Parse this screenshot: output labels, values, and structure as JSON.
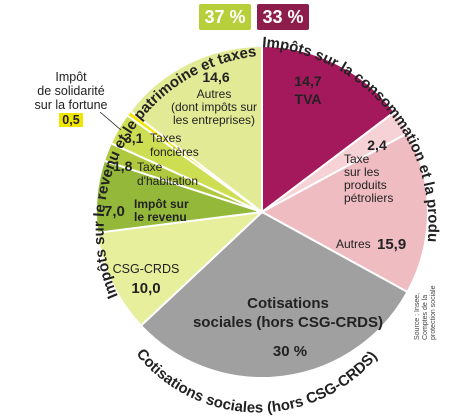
{
  "chart_data": {
    "type": "pie",
    "groups": [
      {
        "name": "Impôts sur la consommation et la production",
        "percent": "33 %",
        "color": "#8d1d4a"
      },
      {
        "name": "Cotisations sociales (hors CSG-CRDS)",
        "percent": "30 %",
        "color": "#9a9a9a"
      },
      {
        "name": "Impôts sur le revenu et le patrimoine et taxes affectées",
        "percent": "37 %",
        "color": "#8fb03b"
      }
    ],
    "slices": [
      {
        "label": "TVA",
        "value": 14.7,
        "value_text": "14,7",
        "color": "#a3195b"
      },
      {
        "label": "Taxe sur les produits pétroliers",
        "value": 2.4,
        "value_text": "2,4",
        "color": "#f6d2d6"
      },
      {
        "label": "Autres",
        "value": 15.9,
        "value_text": "15,9",
        "color": "#efbcc2"
      },
      {
        "label": "Cotisations sociales (hors CSG-CRDS)",
        "value": 30,
        "value_text": "30 %",
        "color": "#a0a0a0"
      },
      {
        "label": "CSG-CRDS",
        "value": 10.0,
        "value_text": "10,0",
        "color": "#e7ee9c"
      },
      {
        "label": "Impôt sur le revenu",
        "value": 7.0,
        "value_text": "7,0",
        "color": "#94b83a"
      },
      {
        "label": "Taxe d'habitation",
        "value": 1.8,
        "value_text": "1,8",
        "color": "#afc93f"
      },
      {
        "label": "Taxes foncières",
        "value": 3.1,
        "value_text": "3,1",
        "color": "#cede53"
      },
      {
        "label": "Impôt de solidarité sur la fortune",
        "value": 0.5,
        "value_text": "0,5",
        "color": "#f1e600"
      },
      {
        "label": "Autres (dont impôts sur les entreprises)",
        "value": 14.6,
        "value_text": "14,6",
        "color": "#e3ea95"
      }
    ]
  },
  "labels": {
    "pct_green": "37 %",
    "pct_red": "33 %",
    "arc_red": "Impôts sur la consommation et la production",
    "arc_green": "Impôts sur le revenu et le patrimoine et taxes affectées",
    "arc_gray": "Cotisations sociales (hors CSG-CRDS)",
    "tva_value": "14,7",
    "tva_label": "TVA",
    "petrol_value": "2,4",
    "petrol_l1": "Taxe",
    "petrol_l2": "sur les",
    "petrol_l3": "produits",
    "petrol_l4": "pétroliers",
    "autres_red_label": "Autres",
    "autres_red_value": "15,9",
    "cotis_l1": "Cotisations",
    "cotis_l2": "sociales (hors CSG-CRDS)",
    "cotis_value": "30 %",
    "csg_label": "CSG-CRDS",
    "csg_value": "10,0",
    "ir_value": "7,0",
    "ir_l1": "Impôt sur",
    "ir_l2": "le revenu",
    "th_value": "1,8",
    "th_l1": "Taxe",
    "th_l2": "d'habitation",
    "tf_value": "3,1",
    "tf_l1": "Taxes",
    "tf_l2": "foncières",
    "autres_green_value": "14,6",
    "autres_green_l1": "Autres",
    "autres_green_l2": "(dont impôts sur",
    "autres_green_l3": "les entreprises)",
    "isf_l1": "Impôt",
    "isf_l2": "de solidarité",
    "isf_l3": "sur la fortune",
    "isf_value": "0,5",
    "source_l1": "Source : Insee,",
    "source_l2": "Comptes de la",
    "source_l3": "protection sociale"
  }
}
